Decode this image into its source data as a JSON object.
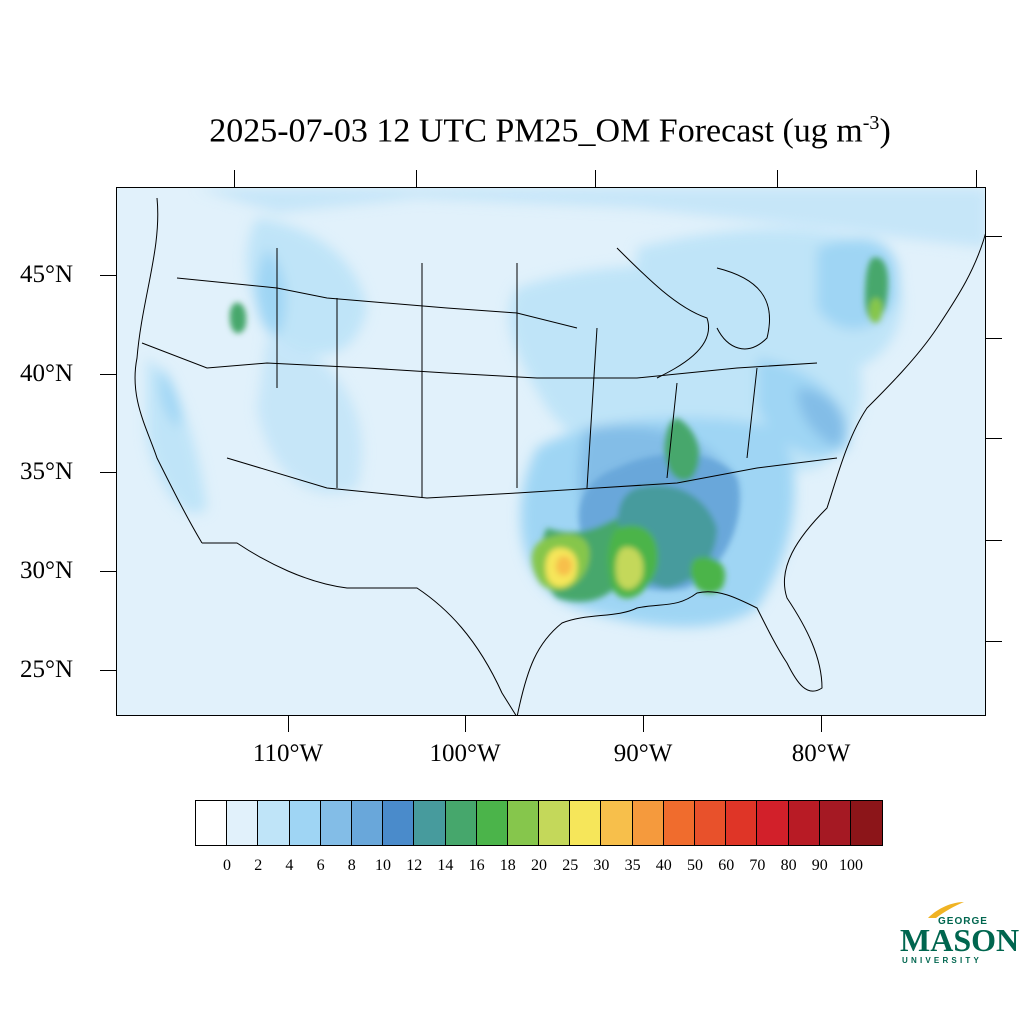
{
  "title": {
    "main": "2025-07-03 12 UTC PM25_OM Forecast (ug m",
    "sup": "-3",
    "close": ")"
  },
  "map": {
    "lat_labels": [
      "45°N",
      "40°N",
      "35°N",
      "30°N",
      "25°N"
    ],
    "lon_labels": [
      "110°W",
      "100°W",
      "90°W",
      "80°W"
    ],
    "background_color": "#e1f1fb",
    "hotspots": [
      {
        "region": "Louisiana / East Texas",
        "level": "30-35"
      },
      {
        "region": "Mississippi / Alabama",
        "level": "20-25"
      },
      {
        "region": "Tennessee / Kentucky",
        "level": "14-18"
      },
      {
        "region": "Southern New England",
        "level": "18-20"
      },
      {
        "region": "Idaho / Oregon border",
        "level": "14-16"
      }
    ]
  },
  "colorbar": {
    "colors": [
      "#ffffff",
      "#e1f1fb",
      "#bfe4f8",
      "#9fd5f4",
      "#83bde7",
      "#69a7da",
      "#4a8bcb",
      "#479b9d",
      "#46a76c",
      "#4bb44a",
      "#86c64c",
      "#c4d85a",
      "#f6e65a",
      "#f7bf4b",
      "#f59a3d",
      "#f06c2d",
      "#e8512b",
      "#df3527",
      "#d2202a",
      "#b81b25",
      "#a51923",
      "#8c1519"
    ],
    "labels": [
      "0",
      "2",
      "4",
      "6",
      "8",
      "10",
      "12",
      "14",
      "16",
      "18",
      "20",
      "25",
      "30",
      "35",
      "40",
      "50",
      "60",
      "70",
      "80",
      "90",
      "100"
    ]
  },
  "logo": {
    "line1": "GEORGE",
    "line2": "MASON",
    "line3": "UNIVERSITY",
    "color": "#00664f",
    "accent": "#f0b323"
  }
}
